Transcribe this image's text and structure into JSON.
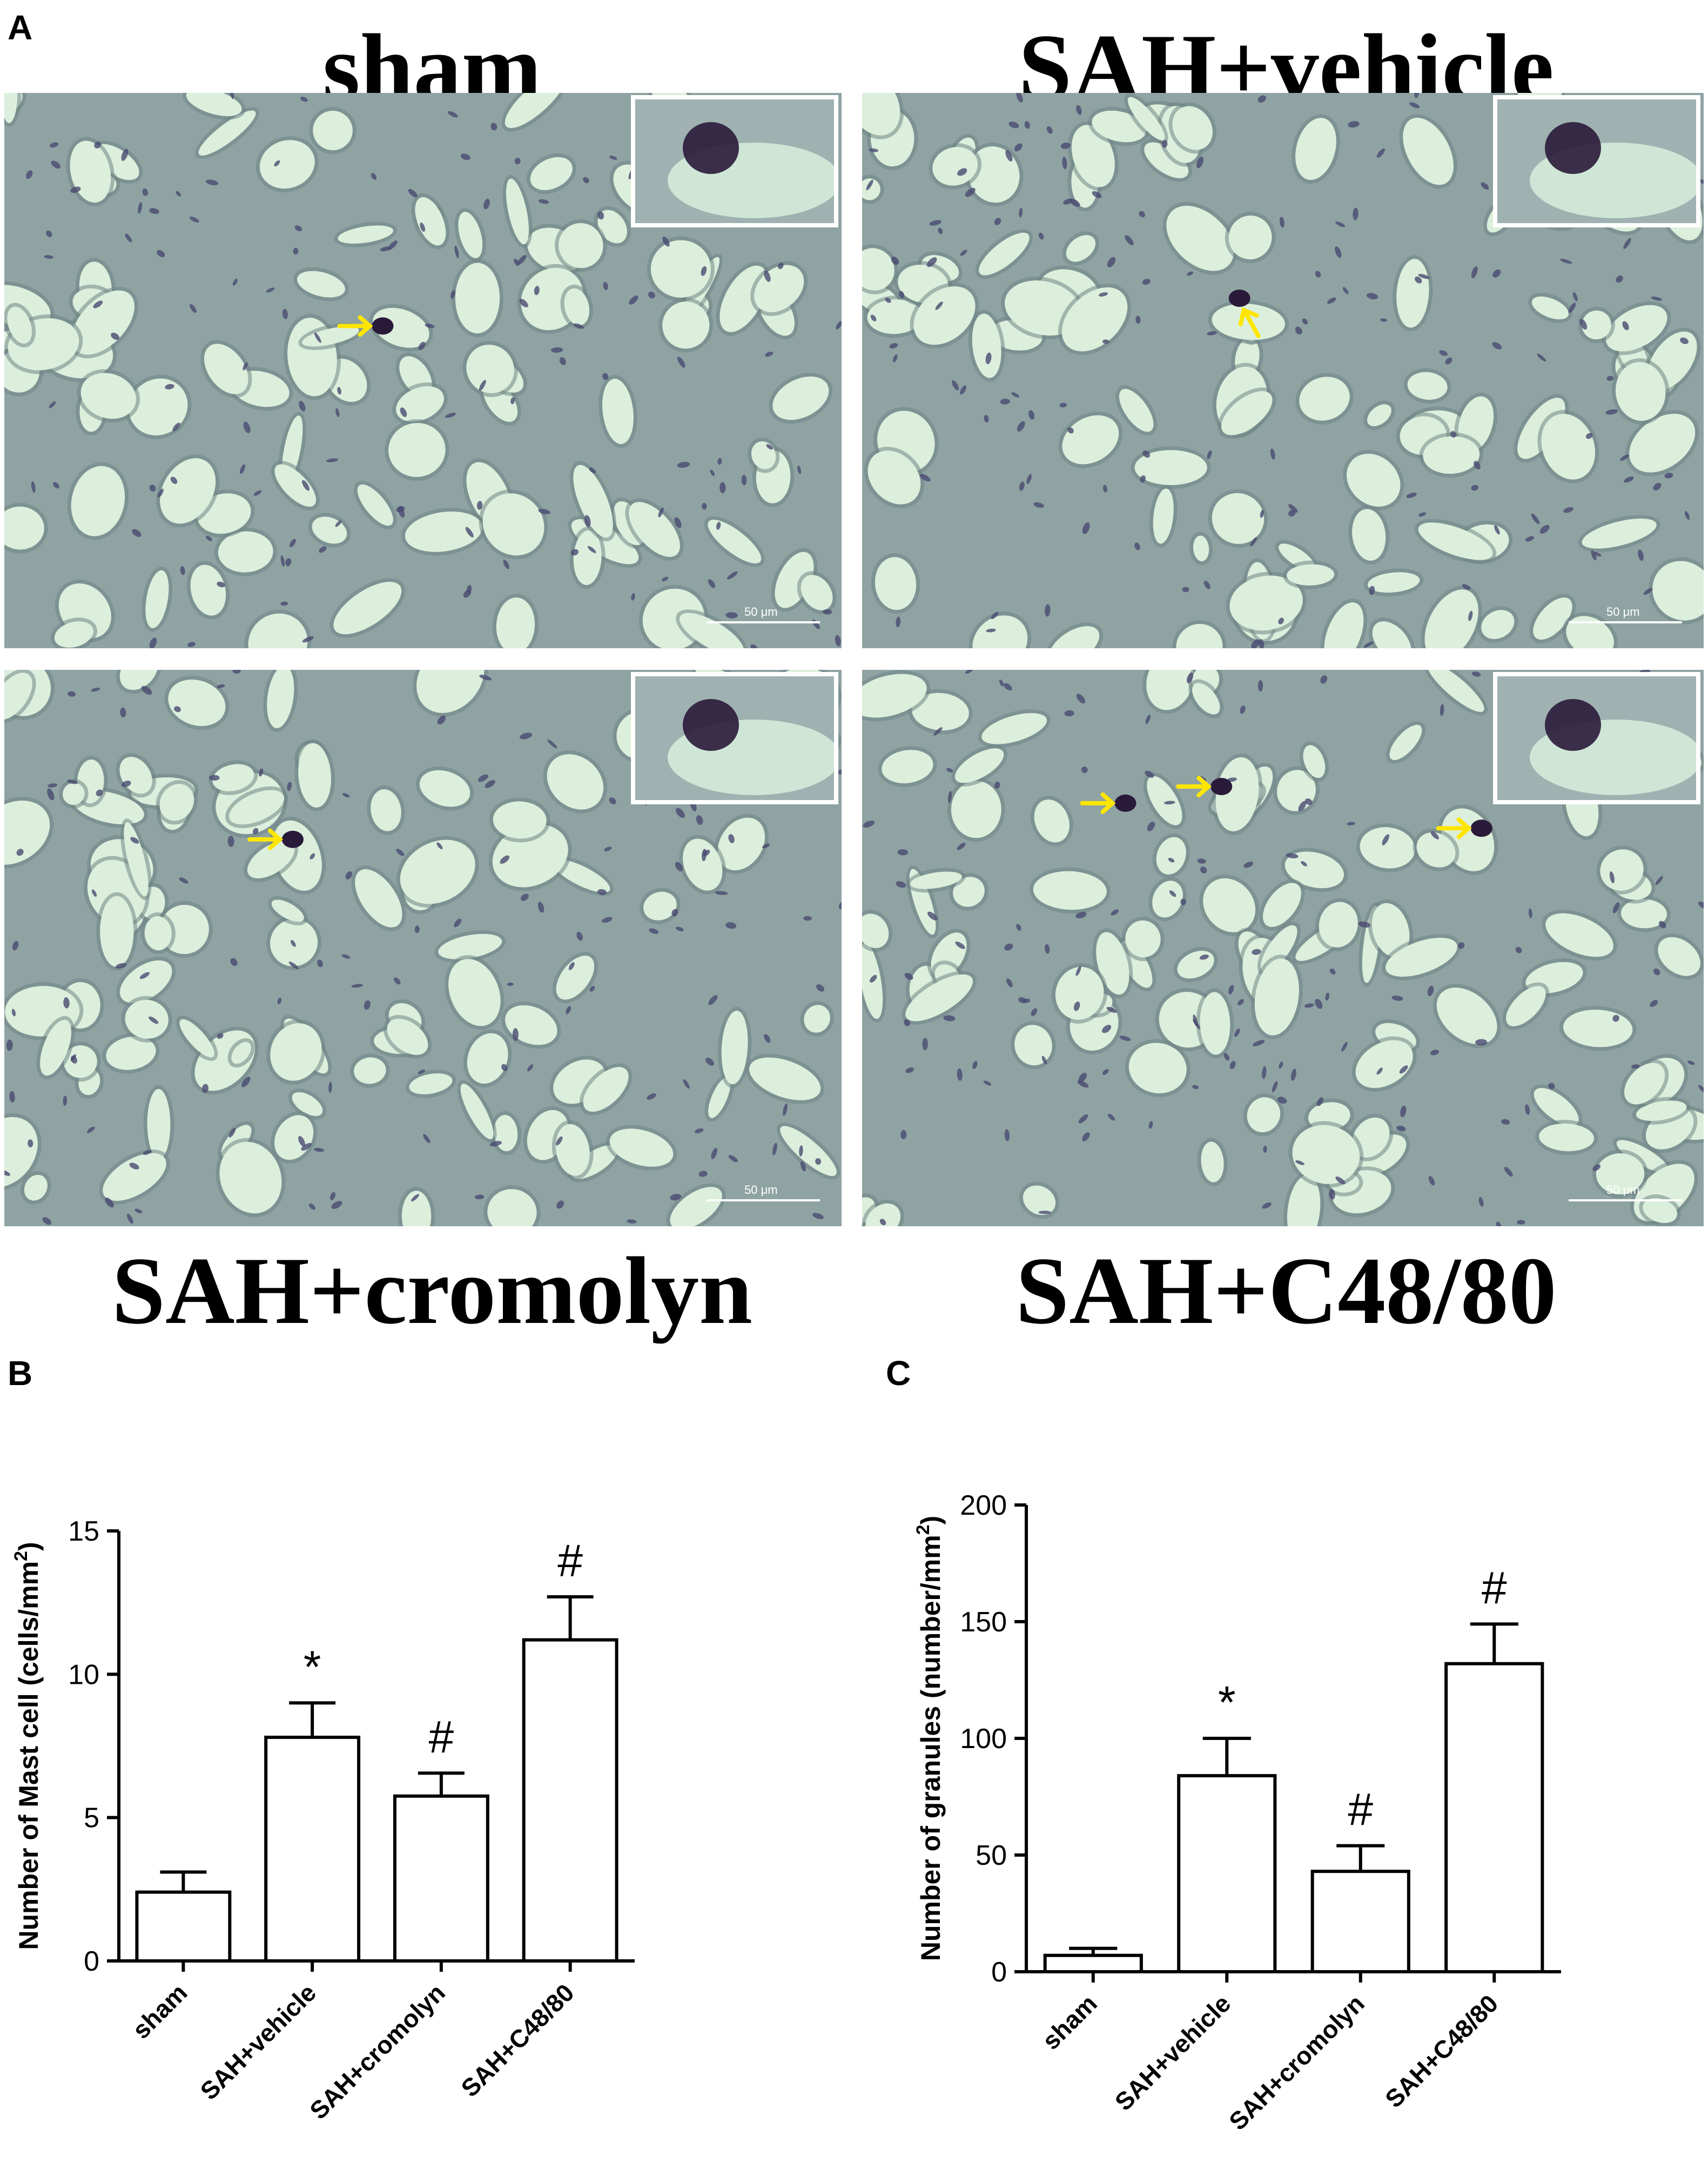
{
  "figure": {
    "panel_a": {
      "letter": "A",
      "groups": [
        {
          "title": "sham",
          "scale_label": "50 μm"
        },
        {
          "title": "SAH+vehicle",
          "scale_label": "50 μm"
        },
        {
          "title": "SAH+cromolyn",
          "scale_label": "50 μm"
        },
        {
          "title": "SAH+C48/80",
          "scale_label": "50 μm"
        }
      ],
      "colors": {
        "tissue": "#8fa3a3",
        "vessel": "#dcefdc",
        "nucleus": "#4a4a70",
        "mast_cell": "#2a1a3a",
        "arrow": "#ffe600"
      }
    },
    "panel_b": {
      "letter": "B"
    },
    "panel_c": {
      "letter": "C"
    }
  },
  "chart_data": [
    {
      "type": "bar",
      "panel": "B",
      "categories": [
        "sham",
        "SAH+vehicle",
        "SAH+cromolyn",
        "SAH+C48/80"
      ],
      "values": [
        2.4,
        7.8,
        5.75,
        11.2
      ],
      "errors": [
        0.7,
        1.2,
        0.8,
        1.5
      ],
      "markers": [
        "",
        "*",
        "#",
        "#"
      ],
      "ylabel": "Number of Mast cell (cells/mm",
      "ylabel_sup": "2",
      "ylabel_end": ")",
      "ylim": [
        0,
        15
      ],
      "yticks": [
        0,
        5,
        10,
        15
      ],
      "ytick_labels": [
        "0",
        "5",
        "10",
        "15"
      ],
      "bar_color": "#ffffff",
      "edge_color": "#000000"
    },
    {
      "type": "bar",
      "panel": "C",
      "categories": [
        "sham",
        "SAH+vehicle",
        "SAH+cromolyn",
        "SAH+C48/80"
      ],
      "values": [
        7,
        84,
        43,
        132
      ],
      "errors": [
        3,
        16,
        11,
        17
      ],
      "markers": [
        "",
        "*",
        "#",
        "#"
      ],
      "ylabel": "Number of granules (number/mm",
      "ylabel_sup": "2",
      "ylabel_end": ")",
      "ylim": [
        0,
        200
      ],
      "yticks": [
        0,
        50,
        100,
        150,
        200
      ],
      "ytick_labels": [
        "0",
        "50",
        "100",
        "150",
        "200"
      ],
      "bar_color": "#ffffff",
      "edge_color": "#000000"
    }
  ]
}
